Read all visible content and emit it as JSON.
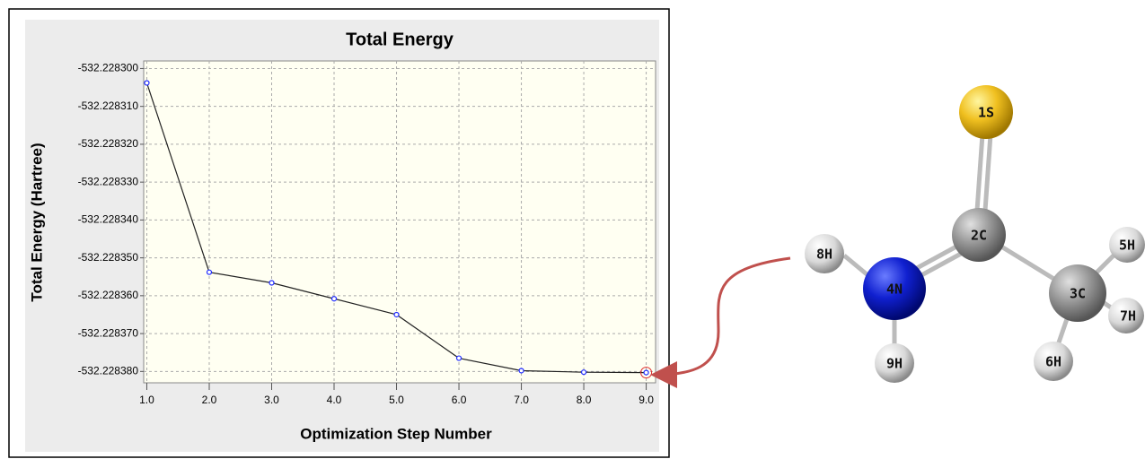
{
  "chart_data": {
    "type": "line",
    "title": "Total Energy",
    "x_label": "Optimization Step Number",
    "y_label": "Total Energy (Hartree)",
    "x": [
      1,
      2,
      3,
      4,
      5,
      6,
      7,
      8,
      9
    ],
    "values": [
      -532.2283038,
      -532.2283538,
      -532.2283566,
      -532.2283608,
      -532.228365,
      -532.2283765,
      -532.2283798,
      -532.2283802,
      -532.2283803
    ],
    "color": "#222222",
    "marker_color": "#1f2bff",
    "xlim": [
      0.95,
      9.15
    ],
    "ylim": [
      -532.228383,
      -532.228298
    ],
    "xticks": [
      {
        "value": 1,
        "label": "1.0"
      },
      {
        "value": 2,
        "label": "2.0"
      },
      {
        "value": 3,
        "label": "3.0"
      },
      {
        "value": 4,
        "label": "4.0"
      },
      {
        "value": 5,
        "label": "5.0"
      },
      {
        "value": 6,
        "label": "6.0"
      },
      {
        "value": 7,
        "label": "7.0"
      },
      {
        "value": 8,
        "label": "8.0"
      },
      {
        "value": 9,
        "label": "9.0"
      }
    ],
    "yticks": [
      {
        "value": -532.2283,
        "label": "-532.228300"
      },
      {
        "value": -532.22831,
        "label": "-532.228310"
      },
      {
        "value": -532.22832,
        "label": "-532.228320"
      },
      {
        "value": -532.22833,
        "label": "-532.228330"
      },
      {
        "value": -532.22834,
        "label": "-532.228340"
      },
      {
        "value": -532.22835,
        "label": "-532.228350"
      },
      {
        "value": -532.22836,
        "label": "-532.228360"
      },
      {
        "value": -532.22837,
        "label": "-532.228370"
      },
      {
        "value": -532.22838,
        "label": "-532.228380"
      }
    ],
    "grid": true
  },
  "molecule": {
    "atoms": [
      {
        "label": "1S"
      },
      {
        "label": "2C"
      },
      {
        "label": "3C"
      },
      {
        "label": "4N"
      },
      {
        "label": "5H"
      },
      {
        "label": "6H"
      },
      {
        "label": "7H"
      },
      {
        "label": "8H"
      },
      {
        "label": "9H"
      }
    ]
  }
}
